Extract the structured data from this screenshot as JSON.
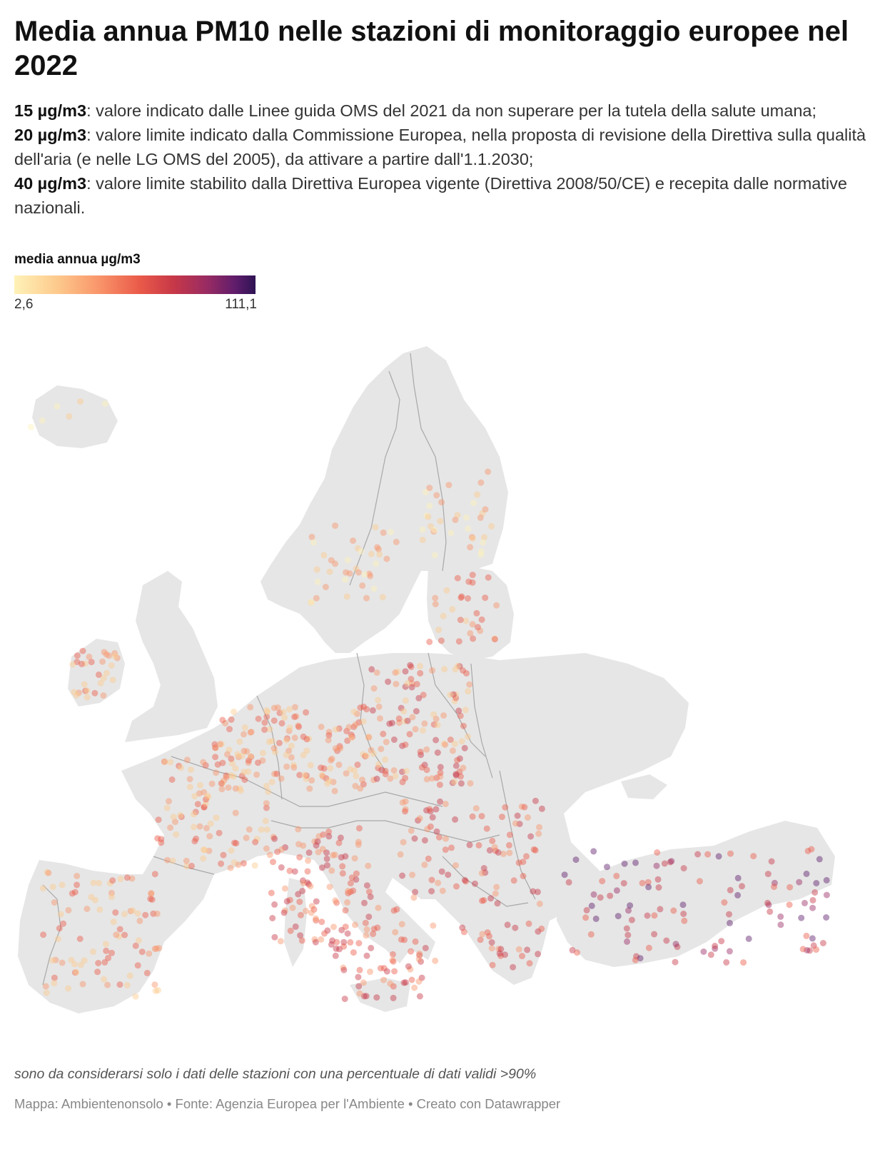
{
  "title": "Media annua PM10 nelle stazioni di monitoraggio europee nel 2022",
  "description": [
    {
      "bold": "15 µg/m3",
      "text": ": valore indicato dalle Linee guida OMS del 2021 da non superare per la tutela della salute umana;"
    },
    {
      "bold": "20 µg/m3",
      "text": ": valore limite indicato dalla Commissione Europea, nella proposta di revisione della Direttiva sulla qualità dell'aria (e nelle LG OMS del 2005), da attivare a partire dall'1.1.2030;"
    },
    {
      "bold": "40 µg/m3",
      "text": ": valore limite stabilito dalla Direttiva Europea vigente (Direttiva 2008/50/CE) e recepita dalle normative nazionali."
    }
  ],
  "legend": {
    "title": "media annua µg/m3",
    "min_label": "2,6",
    "max_label": "111,1",
    "colors": [
      "#fff2b8",
      "#fdc98c",
      "#f9956a",
      "#ea5a49",
      "#c73848",
      "#982b63",
      "#5d1c6b",
      "#2e1353"
    ]
  },
  "map": {
    "land_color": "#e6e6e6",
    "border_color": "#a8a8a8",
    "marker_opacity": 0.45
  },
  "note": "sono da considerarsi solo i dati delle stazioni con una percentuale di dati validi >90%",
  "source": {
    "text": "Mappa: Ambientenonsolo • Fonte: Agenzia Europea per l'Ambiente • Creato con Datawrapper"
  }
}
